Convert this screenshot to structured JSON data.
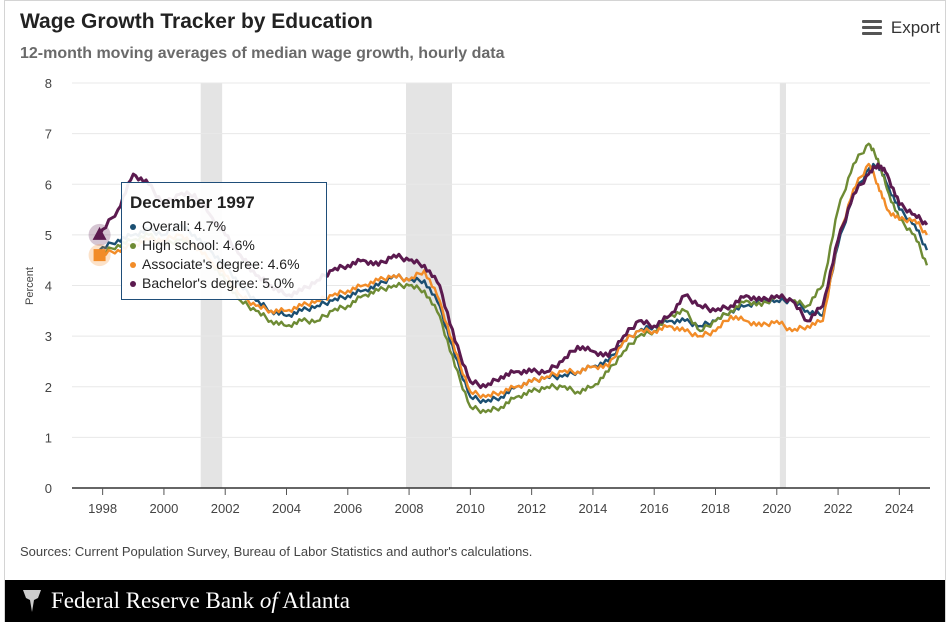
{
  "header": {
    "title": "Wage Growth Tracker by Education",
    "subtitle": "12-month moving averages of median wage growth, hourly data",
    "export_label": "Export"
  },
  "sources": "Sources: Current Population Survey, Bureau of Labor Statistics and author's calculations.",
  "footer": {
    "org_prefix": "Federal Reserve Bank ",
    "org_of": "of",
    "org_suffix": " Atlanta"
  },
  "tooltip": {
    "title": "December 1997",
    "rows": [
      "Overall: 4.7%",
      "High school: 4.6%",
      "Associate's degree: 4.6%",
      "Bachelor's degree: 5.0%"
    ]
  },
  "colors": {
    "overall": "#1b4f72",
    "high_school": "#6e8b34",
    "associates": "#f28c28",
    "bachelors": "#5b1a4f",
    "recession": "#e4e4e4"
  },
  "chart_data": {
    "type": "line",
    "title": "Wage Growth Tracker by Education",
    "subtitle": "12-month moving averages of median wage growth, hourly data",
    "xlabel": "",
    "ylabel": "Percent",
    "ylim": [
      0,
      8
    ],
    "xlim": [
      1997.0,
      2025.0
    ],
    "y_ticks": [
      0,
      1,
      2,
      3,
      4,
      5,
      6,
      7,
      8
    ],
    "x_ticks": [
      "1998",
      "2000",
      "2002",
      "2004",
      "2006",
      "2008",
      "2010",
      "2012",
      "2014",
      "2016",
      "2018",
      "2020",
      "2022",
      "2024"
    ],
    "recessions": [
      [
        2001.2,
        2001.9
      ],
      [
        2007.9,
        2009.4
      ],
      [
        2020.1,
        2020.3
      ]
    ],
    "series": [
      {
        "name": "Overall",
        "color_key": "overall",
        "x": [
          1997.9,
          1998.5,
          1999,
          1999.5,
          2000,
          2000.5,
          2001,
          2001.5,
          2002,
          2002.5,
          2003,
          2003.5,
          2004,
          2004.5,
          2005,
          2005.5,
          2006,
          2006.5,
          2007,
          2007.5,
          2008,
          2008.5,
          2009,
          2009.5,
          2010,
          2010.5,
          2011,
          2011.5,
          2012,
          2012.5,
          2013,
          2013.5,
          2014,
          2014.5,
          2015,
          2015.5,
          2016,
          2016.5,
          2017,
          2017.5,
          2018,
          2018.5,
          2019,
          2019.5,
          2020,
          2020.5,
          2021,
          2021.5,
          2022,
          2022.5,
          2023,
          2023.3,
          2023.6,
          2024,
          2024.5,
          2024.9
        ],
        "y": [
          4.7,
          4.9,
          5.0,
          5.1,
          5.0,
          5.2,
          5.0,
          4.7,
          4.4,
          4.0,
          3.7,
          3.5,
          3.4,
          3.5,
          3.6,
          3.7,
          3.8,
          3.9,
          4.0,
          4.2,
          4.1,
          4.1,
          3.6,
          2.6,
          1.8,
          1.7,
          1.8,
          2.0,
          2.1,
          2.2,
          2.2,
          2.3,
          2.4,
          2.5,
          2.9,
          3.1,
          3.2,
          3.3,
          3.3,
          3.2,
          3.3,
          3.5,
          3.6,
          3.7,
          3.7,
          3.7,
          3.5,
          3.4,
          4.8,
          5.8,
          6.3,
          6.4,
          6.0,
          5.5,
          5.2,
          4.7
        ]
      },
      {
        "name": "High school",
        "color_key": "high_school",
        "x": [
          1997.9,
          1998.5,
          1999,
          1999.5,
          2000,
          2000.5,
          2001,
          2001.5,
          2002,
          2002.5,
          2003,
          2003.5,
          2004,
          2004.5,
          2005,
          2005.5,
          2006,
          2006.5,
          2007,
          2007.5,
          2008,
          2008.5,
          2009,
          2009.5,
          2010,
          2010.5,
          2011,
          2011.5,
          2012,
          2012.5,
          2013,
          2013.5,
          2014,
          2014.5,
          2015,
          2015.5,
          2016,
          2016.5,
          2017,
          2017.5,
          2018,
          2018.5,
          2019,
          2019.5,
          2020,
          2020.5,
          2021,
          2021.5,
          2022,
          2022.5,
          2023,
          2023.3,
          2023.6,
          2024,
          2024.5,
          2024.9
        ],
        "y": [
          4.6,
          4.8,
          4.9,
          5.0,
          4.8,
          4.9,
          4.8,
          4.5,
          4.1,
          3.7,
          3.5,
          3.3,
          3.2,
          3.3,
          3.3,
          3.5,
          3.6,
          3.8,
          3.9,
          4.0,
          4.0,
          3.9,
          3.4,
          2.4,
          1.6,
          1.5,
          1.6,
          1.8,
          1.9,
          2.0,
          2.0,
          1.9,
          2.0,
          2.3,
          2.7,
          3.0,
          3.1,
          3.4,
          3.5,
          3.1,
          3.3,
          3.5,
          3.7,
          3.6,
          3.8,
          3.7,
          3.6,
          4.0,
          5.5,
          6.4,
          6.8,
          6.5,
          5.9,
          5.3,
          5.0,
          4.4
        ]
      },
      {
        "name": "Associate's degree",
        "color_key": "associates",
        "x": [
          1997.9,
          1998.5,
          1999,
          1999.5,
          2000,
          2000.5,
          2001,
          2001.5,
          2002,
          2002.5,
          2003,
          2003.5,
          2004,
          2004.5,
          2005,
          2005.5,
          2006,
          2006.5,
          2007,
          2007.5,
          2008,
          2008.5,
          2009,
          2009.5,
          2010,
          2010.5,
          2011,
          2011.5,
          2012,
          2012.5,
          2013,
          2013.5,
          2014,
          2014.5,
          2015,
          2015.5,
          2016,
          2016.5,
          2017,
          2017.5,
          2018,
          2018.5,
          2019,
          2019.5,
          2020,
          2020.5,
          2021,
          2021.5,
          2022,
          2022.5,
          2023,
          2023.3,
          2023.6,
          2024,
          2024.5,
          2024.9
        ],
        "y": [
          4.6,
          4.7,
          4.8,
          4.9,
          4.9,
          5.0,
          4.8,
          4.5,
          4.2,
          3.8,
          3.6,
          3.5,
          3.5,
          3.6,
          3.7,
          3.8,
          3.9,
          4.0,
          4.1,
          4.2,
          4.1,
          4.3,
          3.7,
          2.7,
          1.9,
          1.8,
          1.9,
          2.0,
          2.1,
          2.2,
          2.3,
          2.3,
          2.4,
          2.4,
          2.9,
          3.1,
          3.1,
          3.2,
          3.1,
          3.0,
          3.1,
          3.4,
          3.3,
          3.2,
          3.3,
          3.1,
          3.2,
          3.3,
          4.9,
          5.9,
          6.4,
          6.0,
          5.5,
          5.3,
          5.3,
          5.0
        ]
      },
      {
        "name": "Bachelor's degree",
        "color_key": "bachelors",
        "x": [
          1997.9,
          1998.5,
          1999,
          1999.5,
          2000,
          2000.5,
          2001,
          2001.5,
          2002,
          2002.5,
          2003,
          2003.5,
          2004,
          2004.5,
          2005,
          2005.5,
          2006,
          2006.5,
          2007,
          2007.5,
          2008,
          2008.5,
          2009,
          2009.5,
          2010,
          2010.5,
          2011,
          2011.5,
          2012,
          2012.5,
          2013,
          2013.5,
          2014,
          2014.5,
          2015,
          2015.5,
          2016,
          2016.5,
          2017,
          2017.5,
          2018,
          2018.5,
          2019,
          2019.5,
          2020,
          2020.5,
          2021,
          2021.5,
          2022,
          2022.5,
          2023,
          2023.3,
          2023.6,
          2024,
          2024.5,
          2024.9
        ],
        "y": [
          5.0,
          5.5,
          6.2,
          6.0,
          5.6,
          5.8,
          5.8,
          5.4,
          5.0,
          4.6,
          4.2,
          4.0,
          3.8,
          3.9,
          4.1,
          4.3,
          4.4,
          4.5,
          4.4,
          4.6,
          4.5,
          4.4,
          4.0,
          2.9,
          2.1,
          2.0,
          2.2,
          2.3,
          2.3,
          2.3,
          2.5,
          2.8,
          2.7,
          2.6,
          3.0,
          3.3,
          3.2,
          3.4,
          3.8,
          3.6,
          3.5,
          3.6,
          3.8,
          3.7,
          3.8,
          3.7,
          3.3,
          3.6,
          4.9,
          5.8,
          6.2,
          6.4,
          6.2,
          5.6,
          5.4,
          5.2
        ]
      }
    ]
  }
}
